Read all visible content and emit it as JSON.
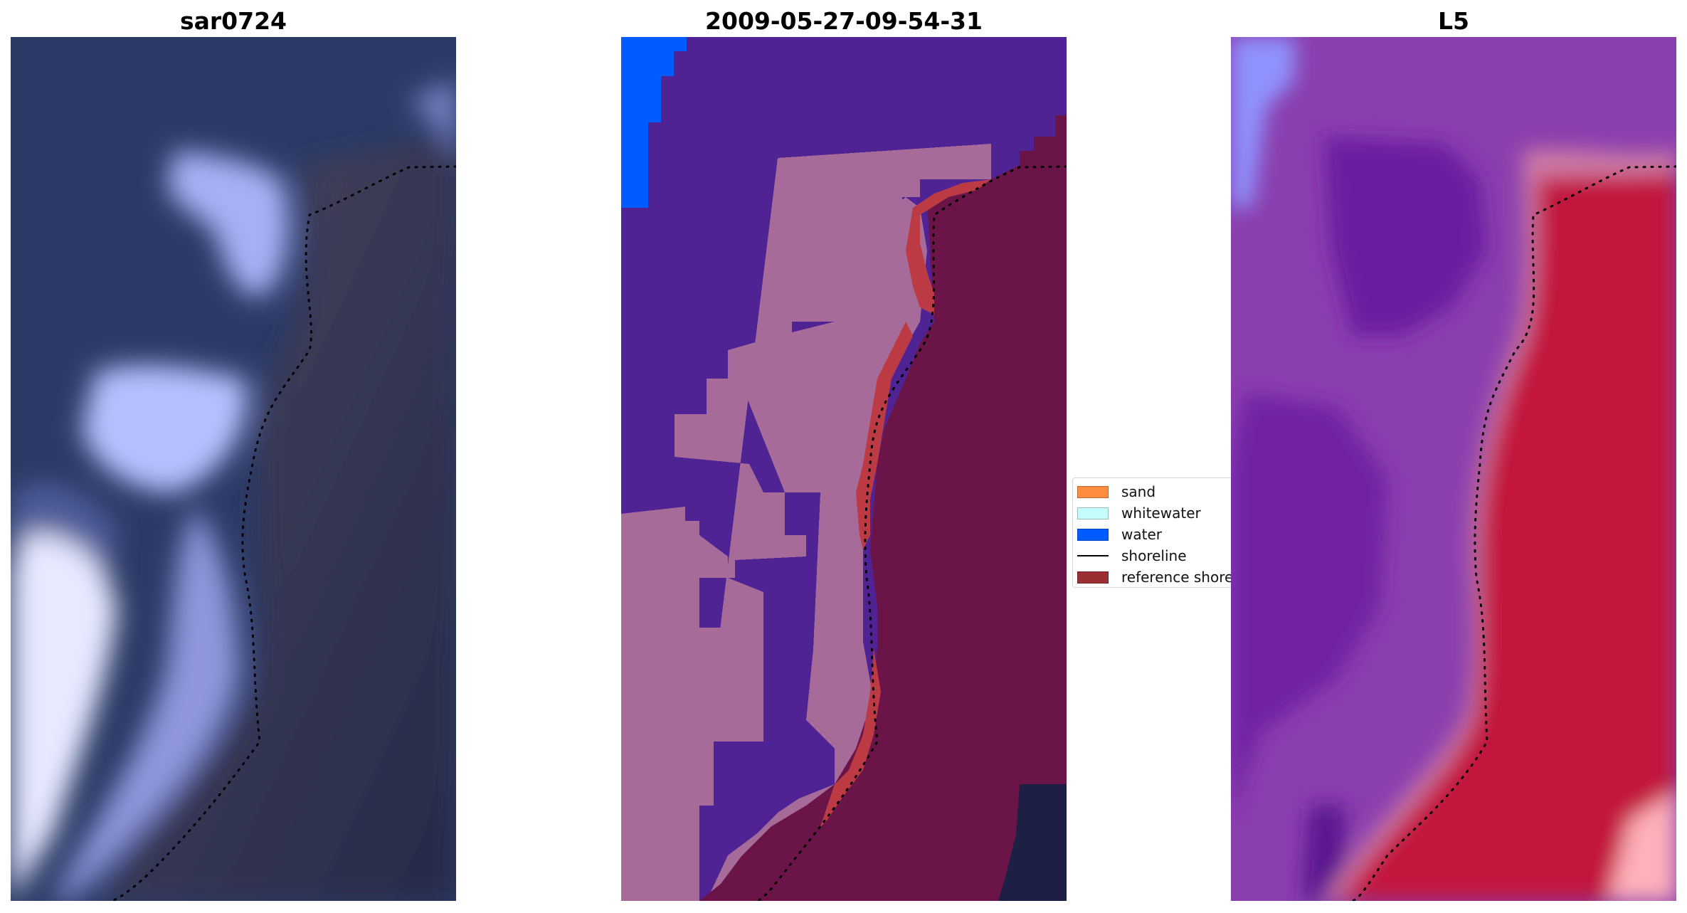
{
  "panels": [
    {
      "title": "sar0724"
    },
    {
      "title": "2009-05-27-09-54-31"
    },
    {
      "title": "L5"
    }
  ],
  "legend": {
    "items": [
      {
        "label": "sand",
        "kind": "patch",
        "color": "#ff8c3f"
      },
      {
        "label": "whitewater",
        "kind": "patch",
        "color": "#c7fcfc"
      },
      {
        "label": "water",
        "kind": "patch",
        "color": "#005cff"
      },
      {
        "label": "shoreline",
        "kind": "line",
        "color": "#000000"
      },
      {
        "label": "reference shoreline",
        "kind": "patch",
        "color": "#9a2e33"
      }
    ]
  },
  "colors": {
    "rgb_water": "#2a3a66",
    "rgb_land": "#3a3a55",
    "rgb_surf": "#b8c0ff",
    "class_water": "#4f2394",
    "class_sand": "#a66b98",
    "class_land": "#6b1448",
    "class_open_water": "#005cff",
    "class_ref_shoreline": "#bb3a43",
    "l5_water": "#7e3ca6",
    "l5_land": "#c2123c",
    "l5_band": "#c97aa6",
    "shoreline": "#000000"
  }
}
